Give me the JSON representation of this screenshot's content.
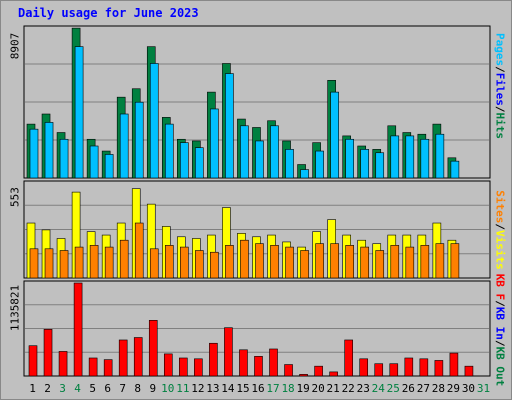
{
  "title": "Daily usage for June 2023",
  "colors": {
    "hits": "#008040",
    "files": "#00c0ff",
    "visits": "#ffff00",
    "sites": "#ff8000",
    "kbytes": "#ff0000",
    "weekend_label": "#008040",
    "weekday_label": "#000000",
    "title": "#0000ff"
  },
  "legends": {
    "top": [
      {
        "text": "Pages",
        "color": "#00c0ff"
      },
      {
        "text": "Files",
        "color": "#0000ff"
      },
      {
        "text": "Hits",
        "color": "#008040"
      }
    ],
    "mid": [
      {
        "text": "Sites",
        "color": "#ff8000"
      },
      {
        "text": "Visits",
        "color": "#ffff00"
      }
    ],
    "bot": [
      {
        "text": "KB F",
        "color": "#ff0000"
      },
      {
        "text": "KB In",
        "color": "#0000ff"
      },
      {
        "text": "KB Out",
        "color": "#008040"
      }
    ]
  },
  "chart_data": {
    "type": "bar",
    "title": "Daily usage for June 2023",
    "categories": [
      "1",
      "2",
      "3",
      "4",
      "5",
      "6",
      "7",
      "8",
      "9",
      "10",
      "11",
      "12",
      "13",
      "14",
      "15",
      "16",
      "17",
      "18",
      "19",
      "20",
      "21",
      "22",
      "23",
      "24",
      "25",
      "26",
      "27",
      "28",
      "29",
      "30",
      "31"
    ],
    "weekend_days": [
      "3",
      "4",
      "10",
      "11",
      "17",
      "18",
      "24",
      "25",
      "31"
    ],
    "panels": [
      {
        "name": "hits-files",
        "ymax_label": "8907",
        "ymax": 8907,
        "series": [
          {
            "name": "Hits",
            "values": [
              3200,
              3800,
              2700,
              8900,
              2300,
              1600,
              4800,
              5300,
              7800,
              3600,
              2300,
              2200,
              5100,
              6800,
              3500,
              3000,
              3400,
              2200,
              800,
              2100,
              5800,
              2500,
              1900,
              1700,
              3100,
              2700,
              2600,
              3200,
              1200,
              0
            ]
          },
          {
            "name": "Files",
            "values": [
              2900,
              3300,
              2300,
              7800,
              1900,
              1400,
              3800,
              4500,
              6800,
              3200,
              2100,
              1800,
              4100,
              6200,
              3100,
              2200,
              3100,
              1700,
              500,
              1600,
              5100,
              2300,
              1700,
              1500,
              2500,
              2500,
              2300,
              2600,
              1000,
              0
            ]
          }
        ]
      },
      {
        "name": "visits-sites",
        "ymax_label": "553",
        "ymax": 553,
        "series": [
          {
            "name": "Visits",
            "values": [
              320,
              280,
              230,
              500,
              270,
              250,
              320,
              520,
              430,
              300,
              240,
              230,
              250,
              410,
              260,
              240,
              250,
              210,
              180,
              270,
              340,
              250,
              220,
              200,
              250,
              250,
              250,
              320,
              220,
              0
            ]
          },
          {
            "name": "Sites",
            "values": [
              170,
              170,
              160,
              180,
              190,
              180,
              220,
              320,
              170,
              190,
              180,
              160,
              150,
              190,
              220,
              200,
              190,
              180,
              160,
              200,
              200,
              190,
              180,
              160,
              190,
              180,
              190,
              200,
              200,
              0
            ]
          }
        ]
      },
      {
        "name": "kbytes",
        "ymax_label": "1135821",
        "ymax": 1135821,
        "series": [
          {
            "name": "KB F",
            "values": [
              370000,
              570000,
              300000,
              1135821,
              220000,
              200000,
              440000,
              470000,
              680000,
              270000,
              220000,
              210000,
              400000,
              590000,
              320000,
              240000,
              330000,
              140000,
              20000,
              120000,
              50000,
              440000,
              210000,
              150000,
              150000,
              220000,
              210000,
              190000,
              280000,
              120000
            ]
          }
        ]
      }
    ]
  }
}
